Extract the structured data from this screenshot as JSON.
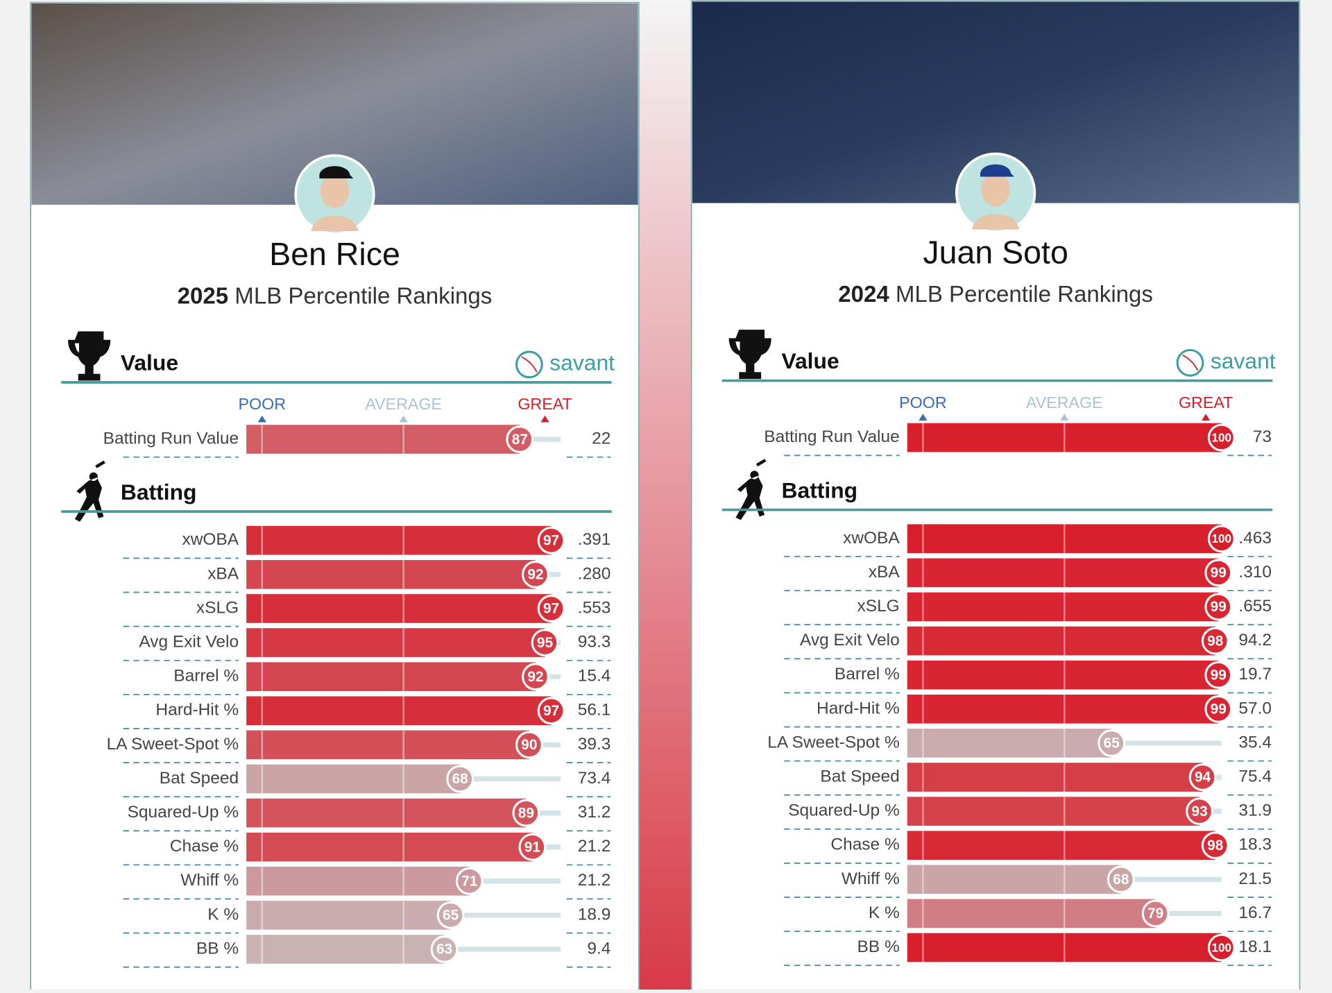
{
  "chart_data": [
    {
      "type": "percentile-bar",
      "player": "Ben Rice",
      "year": "2025",
      "subtitle": "MLB Percentile Rankings",
      "brand": "savant",
      "xlim": [
        0,
        100
      ],
      "xticks": [
        {
          "value": 5,
          "label": "POOR"
        },
        {
          "value": 50,
          "label": "AVERAGE"
        },
        {
          "value": 95,
          "label": "GREAT"
        }
      ],
      "tick_colors": [
        "#3a6bb0",
        "#a9c4d2",
        "#d0202a"
      ],
      "color_scale": [
        "#3661ad",
        "#c8c8c8",
        "#d8202c"
      ],
      "sections": [
        {
          "title": "Value",
          "categories": [
            "Batting Run Value"
          ],
          "values": [
            87
          ],
          "stat_values": [
            "22"
          ]
        },
        {
          "title": "Batting",
          "categories": [
            "xwOBA",
            "xBA",
            "xSLG",
            "Avg Exit Velo",
            "Barrel %",
            "Hard-Hit %",
            "LA Sweet-Spot %",
            "Bat Speed",
            "Squared-Up %",
            "Chase %",
            "Whiff %",
            "K %",
            "BB %"
          ],
          "values": [
            97,
            92,
            97,
            95,
            92,
            97,
            90,
            68,
            89,
            91,
            71,
            65,
            63
          ],
          "stat_values": [
            ".391",
            ".280",
            ".553",
            "93.3",
            "15.4",
            "56.1",
            "39.3",
            "73.4",
            "31.2",
            "21.2",
            "21.2",
            "18.9",
            "9.4"
          ]
        }
      ]
    },
    {
      "type": "percentile-bar",
      "player": "Juan Soto",
      "year": "2024",
      "subtitle": "MLB Percentile Rankings",
      "brand": "savant",
      "xlim": [
        0,
        100
      ],
      "xticks": [
        {
          "value": 5,
          "label": "POOR"
        },
        {
          "value": 50,
          "label": "AVERAGE"
        },
        {
          "value": 95,
          "label": "GREAT"
        }
      ],
      "tick_colors": [
        "#3a6bb0",
        "#a9c4d2",
        "#d0202a"
      ],
      "color_scale": [
        "#3661ad",
        "#c8c8c8",
        "#d8202c"
      ],
      "sections": [
        {
          "title": "Value",
          "categories": [
            "Batting Run Value"
          ],
          "values": [
            100
          ],
          "stat_values": [
            "73"
          ]
        },
        {
          "title": "Batting",
          "categories": [
            "xwOBA",
            "xBA",
            "xSLG",
            "Avg Exit Velo",
            "Barrel %",
            "Hard-Hit %",
            "LA Sweet-Spot %",
            "Bat Speed",
            "Squared-Up %",
            "Chase %",
            "Whiff %",
            "K %",
            "BB %"
          ],
          "values": [
            100,
            99,
            99,
            98,
            99,
            99,
            65,
            94,
            93,
            98,
            68,
            79,
            100
          ],
          "stat_values": [
            ".463",
            ".310",
            ".655",
            "94.2",
            "19.7",
            "57.0",
            "35.4",
            "75.4",
            "31.9",
            "18.3",
            "21.5",
            "16.7",
            "18.1"
          ]
        }
      ]
    }
  ]
}
